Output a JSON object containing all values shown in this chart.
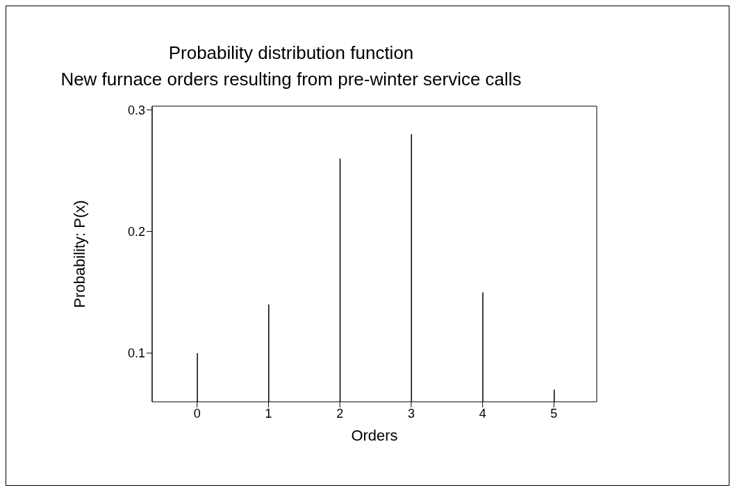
{
  "chart_data": {
    "type": "bar",
    "title": "Probability distribution function",
    "subtitle": "New furnace orders resulting from pre-winter service calls",
    "xlabel": "Orders",
    "ylabel": "Probability: P(x)",
    "x": [
      0,
      1,
      2,
      3,
      4,
      5
    ],
    "values": [
      0.1,
      0.14,
      0.26,
      0.28,
      0.15,
      0.07
    ],
    "color": "#000000",
    "xlim": [
      -0.63,
      5.6
    ],
    "xticks": [
      0,
      1,
      2,
      3,
      4,
      5
    ],
    "ylim": [
      0.06,
      0.303
    ],
    "yticks": [
      0.1,
      0.2,
      0.3
    ]
  }
}
